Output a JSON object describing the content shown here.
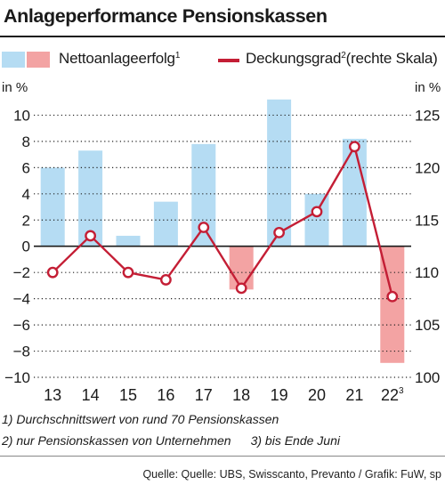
{
  "title": "Anlageperformance Pensionskassen",
  "legend": {
    "bar_label": "Nettoanlageerfolg",
    "bar_note": "1",
    "line_label": "Deckungsgrad",
    "line_note": "2",
    "line_suffix": "(rechte Skala)"
  },
  "units": {
    "left": "in %",
    "right": "in %"
  },
  "colors": {
    "bar_positive": "#b5dcf3",
    "bar_negative": "#f3a3a3",
    "line": "#c41e35",
    "grid": "#222222"
  },
  "chart_data": {
    "type": "bar",
    "categories": [
      "13",
      "14",
      "15",
      "16",
      "17",
      "18",
      "19",
      "20",
      "21",
      "22"
    ],
    "category_notes": [
      "",
      "",
      "",
      "",
      "",
      "",
      "",
      "",
      "",
      "3"
    ],
    "series": [
      {
        "name": "Nettoanlageerfolg",
        "type": "bar",
        "axis": "left",
        "values": [
          6.0,
          7.3,
          0.8,
          3.4,
          7.8,
          -3.3,
          11.2,
          4.0,
          8.2,
          -8.9
        ]
      },
      {
        "name": "Deckungsgrad",
        "type": "line",
        "axis": "right",
        "values": [
          110.0,
          113.5,
          110.0,
          109.3,
          114.3,
          108.5,
          113.8,
          115.8,
          122.0,
          107.7
        ]
      }
    ],
    "y_left": {
      "min": -10,
      "max": 12,
      "ticks": [
        -10,
        -8,
        -6,
        -4,
        -2,
        0,
        2,
        4,
        6,
        8,
        10
      ]
    },
    "y_right": {
      "min": 100,
      "max": 127.5,
      "ticks": [
        100,
        105,
        110,
        115,
        120,
        125
      ]
    },
    "grid": "horizontal dotted"
  },
  "footnotes": {
    "note1": "1) Durchschnittswert von rund 70 Pensionskassen",
    "note2": "2) nur Pensionskassen von Unternehmen",
    "note3": "3) bis Ende Juni"
  },
  "source": "Quelle: Quelle: UBS, Swisscanto, Prevanto / Grafik: FuW, sp"
}
